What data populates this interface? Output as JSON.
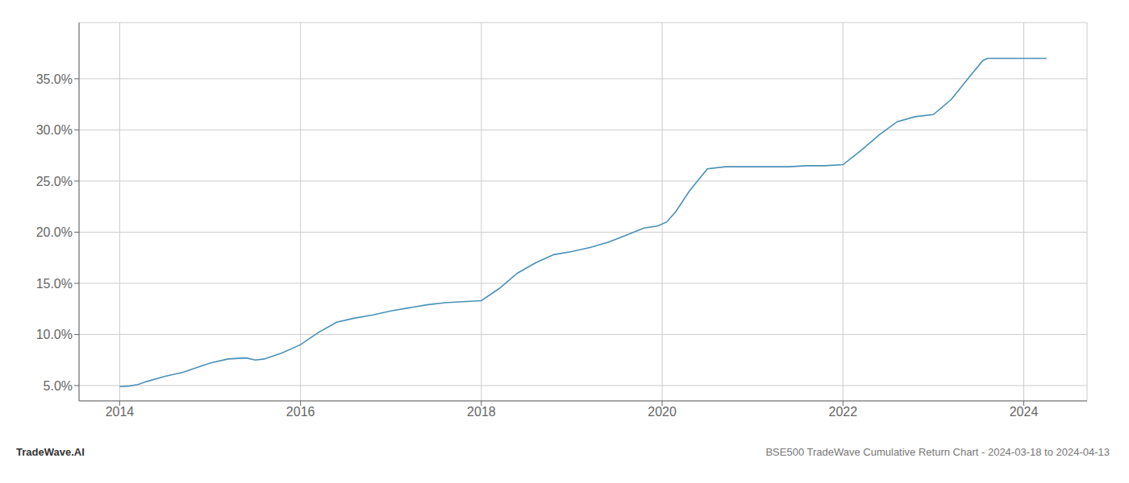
{
  "chart_data": {
    "type": "line",
    "title": "BSE500 TradeWave Cumulative Return Chart - 2024-03-18 to 2024-04-13",
    "annotations": [
      "TradeWave.AI"
    ],
    "x": [
      2014.0,
      2014.1,
      2014.2,
      2014.3,
      2014.5,
      2014.7,
      2014.9,
      2015.0,
      2015.2,
      2015.4,
      2015.5,
      2015.6,
      2015.8,
      2016.0,
      2016.2,
      2016.4,
      2016.6,
      2016.8,
      2017.0,
      2017.2,
      2017.4,
      2017.6,
      2017.8,
      2018.0,
      2018.2,
      2018.4,
      2018.6,
      2018.8,
      2019.0,
      2019.2,
      2019.4,
      2019.6,
      2019.8,
      2019.95,
      2020.05,
      2020.15,
      2020.3,
      2020.5,
      2020.7,
      2020.9,
      2021.0,
      2021.2,
      2021.4,
      2021.6,
      2021.8,
      2022.0,
      2022.2,
      2022.4,
      2022.6,
      2022.8,
      2023.0,
      2023.2,
      2023.4,
      2023.55,
      2023.6,
      2023.7,
      2023.85,
      2024.0,
      2024.1,
      2024.25
    ],
    "values": [
      4.9,
      4.95,
      5.1,
      5.4,
      5.9,
      6.3,
      6.9,
      7.2,
      7.6,
      7.7,
      7.5,
      7.6,
      8.2,
      9.0,
      10.2,
      11.2,
      11.6,
      11.9,
      12.3,
      12.6,
      12.9,
      13.1,
      13.2,
      13.3,
      14.5,
      16.0,
      17.0,
      17.8,
      18.1,
      18.5,
      19.0,
      19.7,
      20.4,
      20.6,
      21.0,
      22.0,
      24.0,
      26.2,
      26.4,
      26.4,
      26.4,
      26.4,
      26.4,
      26.5,
      26.5,
      26.6,
      28.0,
      29.5,
      30.8,
      31.3,
      31.5,
      33.0,
      35.2,
      36.8,
      37.0,
      37.0,
      37.0,
      37.0,
      37.0,
      37.0
    ],
    "color": "#4a90b8",
    "xlim": [
      2013.55,
      2024.7
    ],
    "ylim": [
      3.5,
      40.5
    ],
    "xticks": [
      2014,
      2016,
      2018,
      2020,
      2022,
      2024
    ],
    "yticks": [
      {
        "value": 5.0,
        "label": "5.0%"
      },
      {
        "value": 10.0,
        "label": "10.0%"
      },
      {
        "value": 15.0,
        "label": "15.0%"
      },
      {
        "value": 20.0,
        "label": "20.0%"
      },
      {
        "value": 25.0,
        "label": "25.0%"
      },
      {
        "value": 30.0,
        "label": "30.0%"
      },
      {
        "value": 35.0,
        "label": "35.0%"
      }
    ],
    "grid": true
  }
}
